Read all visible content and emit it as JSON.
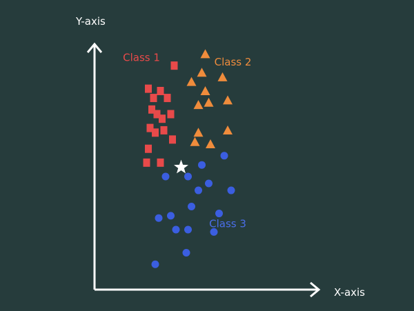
{
  "chart_data": {
    "type": "scatter",
    "xlabel": "X-axis",
    "ylabel": "Y-axis",
    "xlim": [
      0,
      100
    ],
    "ylim": [
      0,
      100
    ],
    "grid": false,
    "series": [
      {
        "name": "Class 1",
        "color": "#e84a4a",
        "marker": "square",
        "points": [
          [
            41,
            91
          ],
          [
            26,
            81
          ],
          [
            29,
            77
          ],
          [
            37,
            77
          ],
          [
            28,
            72
          ],
          [
            33,
            80
          ],
          [
            34,
            68
          ],
          [
            31,
            70
          ],
          [
            39,
            70
          ],
          [
            30,
            62
          ],
          [
            35,
            63
          ],
          [
            40,
            59
          ],
          [
            27,
            64
          ],
          [
            26,
            55
          ],
          [
            25,
            49
          ],
          [
            33,
            49
          ]
        ]
      },
      {
        "name": "Class 2",
        "color": "#ef8c3c",
        "marker": "triangle",
        "points": [
          [
            59,
            96
          ],
          [
            57,
            88
          ],
          [
            69,
            86
          ],
          [
            51,
            84
          ],
          [
            59,
            80
          ],
          [
            72,
            76
          ],
          [
            55,
            74
          ],
          [
            61,
            75
          ],
          [
            55,
            62
          ],
          [
            72,
            63
          ],
          [
            53,
            58
          ],
          [
            62,
            57
          ]
        ]
      },
      {
        "name": "Class 3",
        "color": "#3b5ee0",
        "marker": "circle",
        "points": [
          [
            70,
            52
          ],
          [
            57,
            48
          ],
          [
            36,
            43
          ],
          [
            49,
            43
          ],
          [
            61,
            40
          ],
          [
            55,
            37
          ],
          [
            74,
            37
          ],
          [
            51,
            30
          ],
          [
            67,
            27
          ],
          [
            32,
            25
          ],
          [
            39,
            26
          ],
          [
            42,
            20
          ],
          [
            49,
            20
          ],
          [
            64,
            19
          ],
          [
            48,
            10
          ],
          [
            30,
            5
          ]
        ]
      },
      {
        "name": "",
        "color": "#ffffff",
        "marker": "star",
        "points": [
          [
            45,
            47
          ]
        ]
      }
    ],
    "annotations": [
      {
        "text": "Class 1",
        "color": "#e84a4a",
        "at": [
          22,
          93
        ]
      },
      {
        "text": "Class 2",
        "color": "#ef8c3c",
        "at": [
          75,
          91
        ]
      },
      {
        "text": "Class 3",
        "color": "#4a6ee8",
        "at": [
          72,
          21
        ]
      }
    ],
    "axis_color": "#ffffff"
  }
}
